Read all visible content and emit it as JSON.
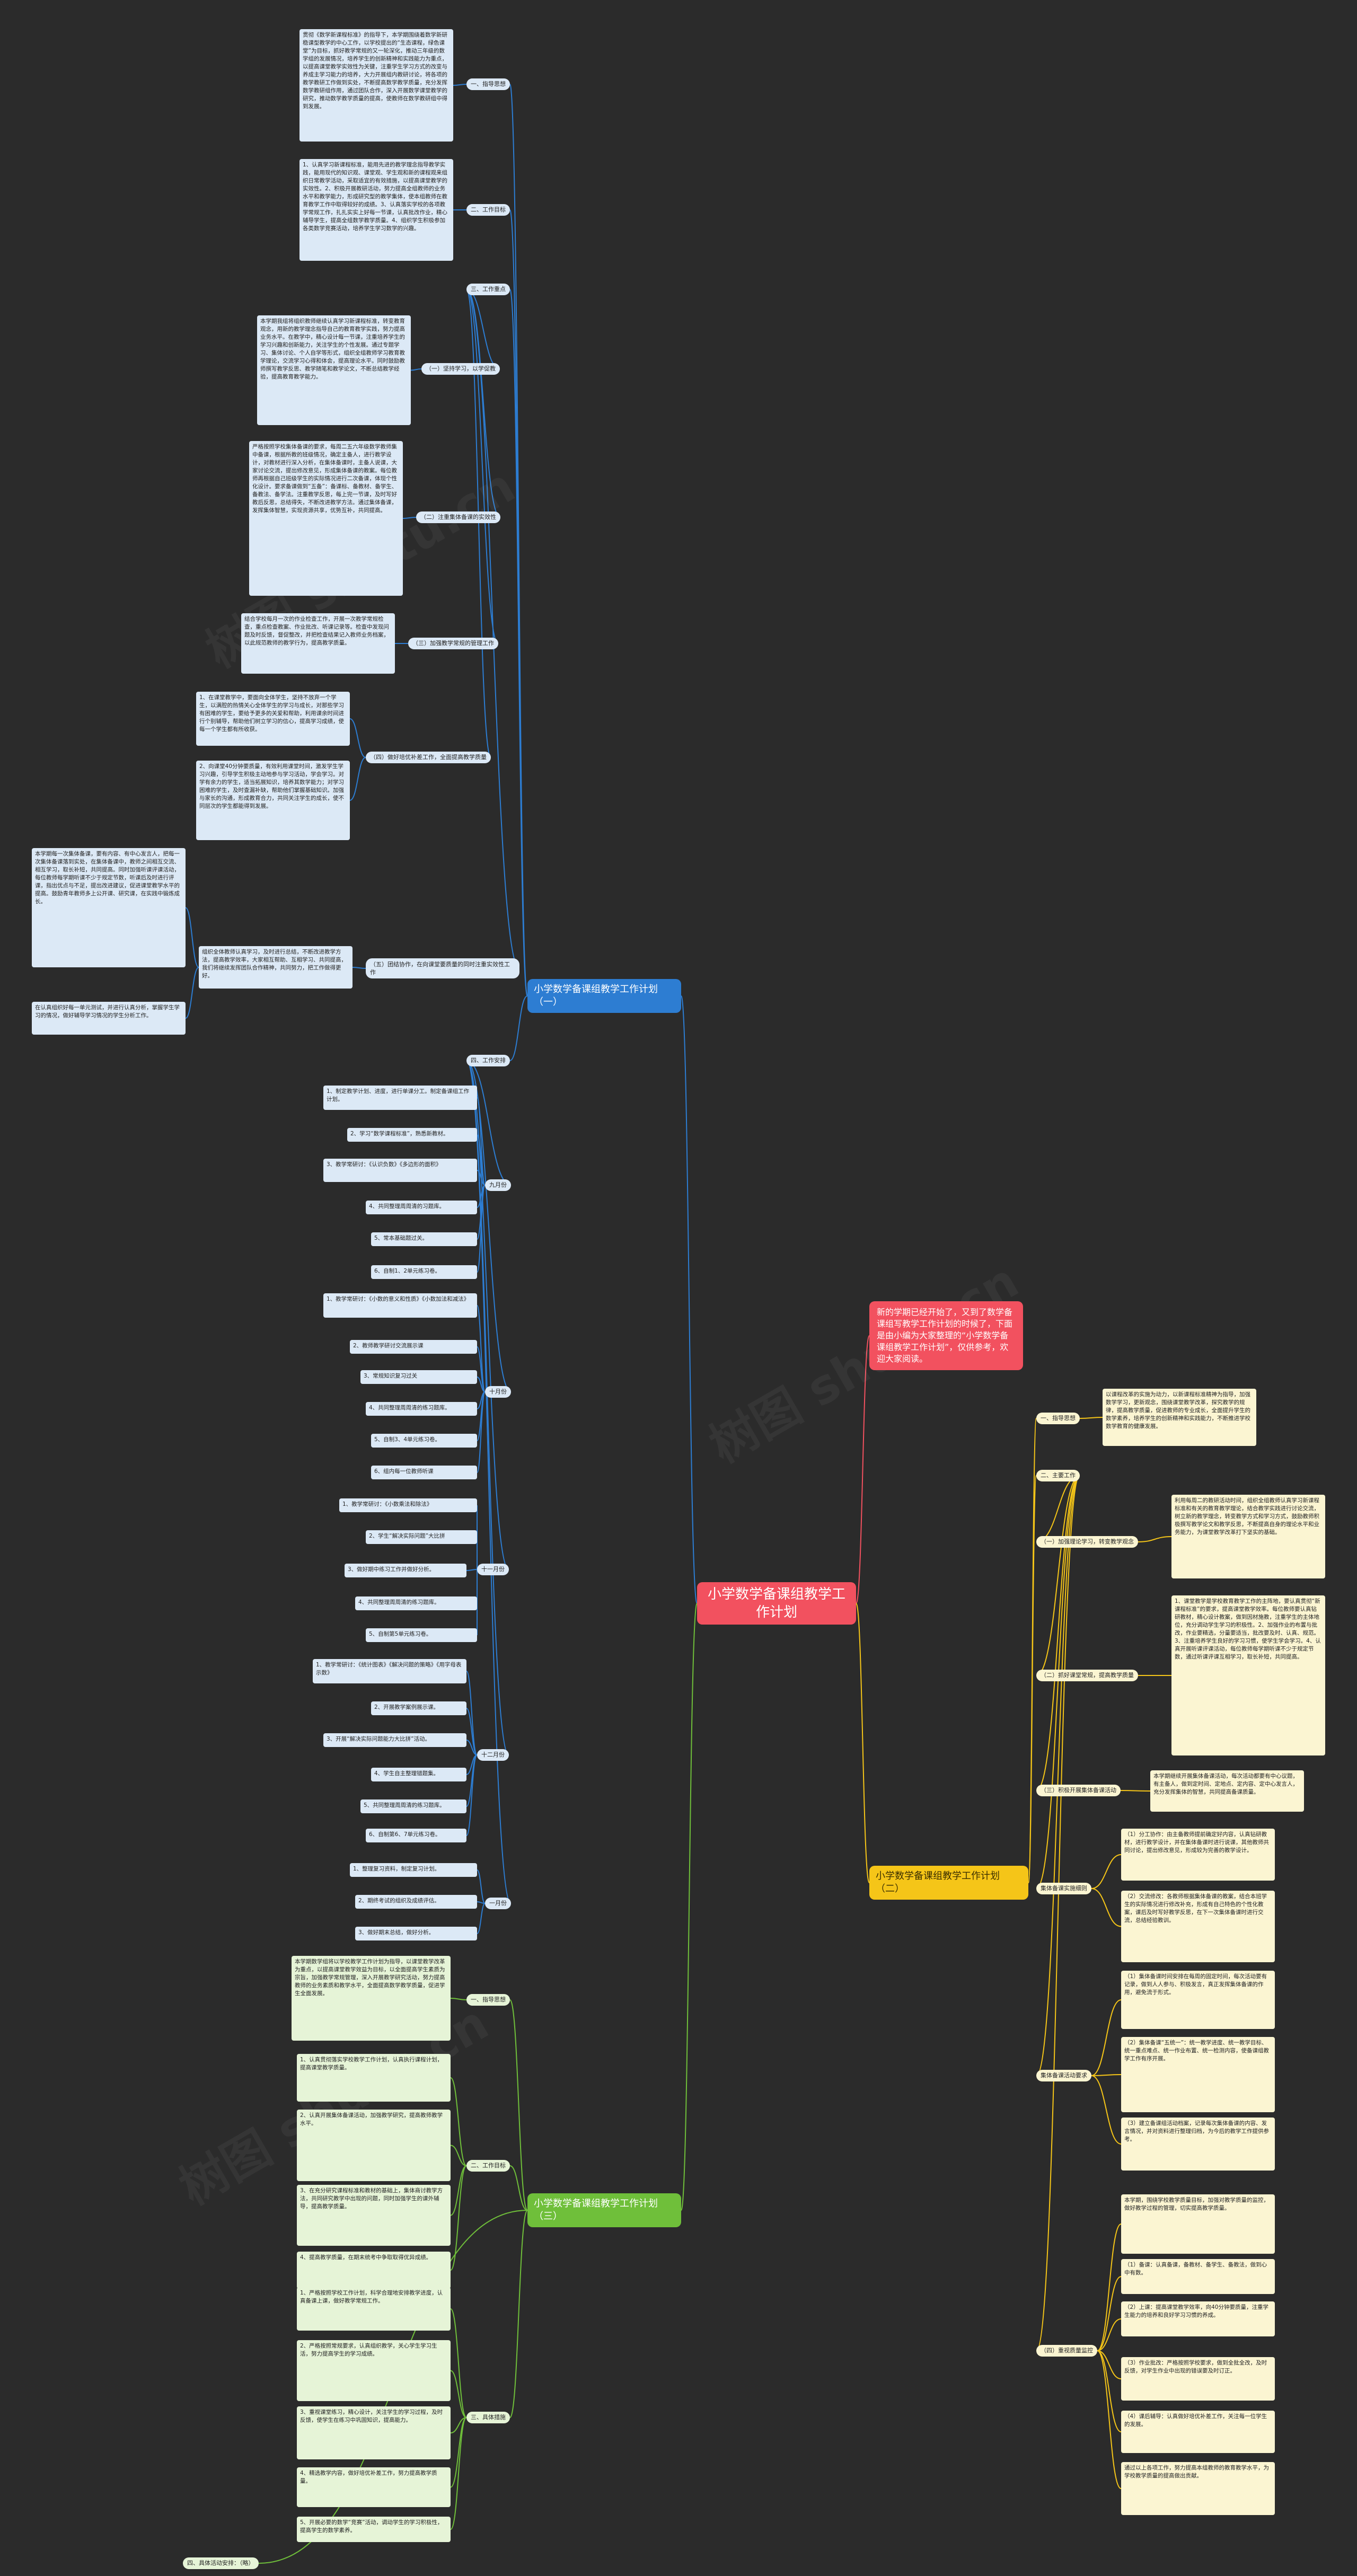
{
  "root": "小学数学备课组教学工作计划",
  "intro": "新的学期已经开始了，又到了数学备课组写教学工作计划的时候了，下面是由小编为大家整理的“小学数学备课组教学工作计划”，仅供参考，欢迎大家阅读。",
  "watermark": "树图 shutu.cn",
  "colors": {
    "background": "#2b2b2b",
    "root": "#f2515f",
    "blue": "#2d7dd2",
    "yellow": "#f5c518",
    "green": "#6fbf3a"
  },
  "plan1": {
    "title": "小学数学备课组教学工作计划（一）",
    "guiding_label": "一、指导思想",
    "guiding_text": "贯彻《数学新课程标准》的指导下，本学期围绕着数学新研稳课型教学的中心工作，以学校提出的“生态课程，绿色课堂”为目标，抓好教学常规的又一轮深化，推动三年级的数学组的发展情况，培养学生的创新精神和实践能力为重点，以提高课堂教学实效性为关键，注重学生学习方式的改变与养成主学习能力的培养，大力开展组内教研讨论，将各项的教学教研工作做到实处，不断提高数学教学质量，充分发挥数学教研组作用，通过团队合作，深入开展数学课堂教学的研究，推动数学教学质量的提高，使教师在数学教研组中得到发展。",
    "goal_label": "二、工作目标",
    "goal_text": "1、认真学习新课程标准，能用先进的教学理念指导教学实践，能用现代的知识观、课堂观、学生观和新的课程观来组织日常教学活动，采取适宜的有效措施，以提高课堂教学的实效性。2、积极开展教研活动，努力提高全组教师的业务水平和教学能力，形成研究型的教学集体，使本组教师在教育教学工作中取得较好的成绩。3、认真落实学校的各项教学常规工作，扎扎实实上好每一节课，认真批改作业，精心辅导学生，提高全组数学教学质量。4、组织学生积极参加各类数学竞赛活动，培养学生学习数学的兴趣。",
    "focus_label": "三、工作重点",
    "s1_label": "（一）坚持学习，以学促教",
    "s1_text": "本学期我组将组织教师继续认真学习新课程标准，转变教育观念，用新的教学理念指导自己的教育教学实践，努力提高业务水平。在教学中，精心设计每一节课，注重培养学生的学习兴趣和创新能力，关注学生的个性发展。通过专题学习、集体讨论、个人自学等形式，组织全组教师学习教育教学理论，交流学习心得和体会，提高理论水平。同时鼓励教师撰写教学反思、教学随笔和教学论文，不断总结教学经验，提高教育教学能力。",
    "s2_label": "（二）注重集体备课的实效性",
    "s2_text": "严格按照学校集体备课的要求，每周二五六年级数学教师集中备课，根据所教的班级情况，确定主备人，进行教学设计，对教材进行深入分析，在集体备课时，主备人说课，大家讨论交流，提出修改意见，形成集体备课的教案。每位教师再根据自己班级学生的实际情况进行二次备课，体现个性化设计。要求备课做到“五备”：备课标、备教材、备学生、备教法、备学法。注重教学反思，每上完一节课，及时写好教后反思，总结得失，不断改进教学方法。通过集体备课，发挥集体智慧，实现资源共享，优势互补，共同提高。",
    "s3_label": "（三）加强教学常规的管理工作",
    "s3_text": "结合学校每月一次的作业检查工作，开展一次教学常规检查，重点检查教案、作业批改、听课记录等。检查中发现问题及时反馈，督促整改，并把检查结果记入教师业务档案，以此规范教师的教学行为，提高教学质量。",
    "s4_label": "（四）做好培优补差工作，全面提高教学质量",
    "s4_text1": "1、在课堂教学中，要面向全体学生，坚持不放弃一个学生，以满腔的热情关心全体学生的学习与成长，对那些学习有困难的学生，要给予更多的关爱和帮助，利用课余时间进行个别辅导，帮助他们树立学习的信心，提高学习成绩，使每一个学生都有所收获。",
    "s4_text2": "2、向课堂40分钟要质量，有效利用课堂时间，激发学生学习兴趣，引导学生积极主动地参与学习活动，学会学习。对学有余力的学生，适当拓展知识，培养其数学能力；对学习困难的学生，及时查漏补缺，帮助他们掌握基础知识。加强与家长的沟通，形成教育合力，共同关注学生的成长，使不同层次的学生都能得到发展。",
    "s5_label": "（五）团结协作，在向课堂要质量的同时注重实效性工作",
    "s5_text1": "本学期每一次集体备课，要有内容、有中心发言人，把每一次集体备课落到实处，在集体备课中，教师之间相互交流、相互学习，取长补短，共同提高。同时加强听课评课活动，每位教师每学期听课不少于规定节数，听课后及时进行评课，指出优点与不足，提出改进建议，促进课堂教学水平的提高。鼓励青年教师多上公开课、研究课，在实践中锻炼成长。",
    "s5_text2": "组织全体教师认真学习，及时进行总结，不断改进教学方法，提高教学效率，大家相互帮助、互相学习、共同提高，我们将继续发挥团队合作精神，共同努力，把工作做得更好。",
    "s5_text3": "在认真组织好每一单元测试，并进行认真分析，掌握学生学习的情况，做好辅导学习情况的学生分析工作。",
    "schedule_label": "四、工作安排",
    "months": [
      {
        "label": "九月份",
        "items": [
          "1、制定教学计划、进度，进行单课分工。制定备课组工作计划。",
          "2、学习“数学课程标准”，熟悉新教材。",
          "3、教学常研讨：《认识负数》《多边形的面积》",
          "4、共同整理周周清的习题库。",
          "5、常本基础题过关。",
          "6、自制1、2单元练习卷。"
        ]
      },
      {
        "label": "十月份",
        "items": [
          "1、教学常研讨：《小数的意义和性质》《小数加法和减法》",
          "2、教师教学研讨交流展示课",
          "3、常规知识复习过关",
          "4、共同整理周周清的练习题库。",
          "5、自制3、4单元练习卷。",
          "6、组内每一位教师听课"
        ]
      },
      {
        "label": "十一月份",
        "items": [
          "1、教学常研讨：《小数乘法和除法》",
          "2、学生“解决实际问题”大比拼",
          "3、做好期中练习工作并做好分析。",
          "4、共同整理周周清的练习题库。",
          "5、自制第5单元练习卷。"
        ]
      },
      {
        "label": "十二月份",
        "items": [
          "1、教学常研讨：《统计图表》《解决问题的策略》《用字母表示数》",
          "2、开展教学案例展示课。",
          "3、开展“解决实际问题能力大比拼”活动。",
          "4、学生自主整理错题集。",
          "5、共同整理周周清的练习题库。",
          "6、自制第6、7单元练习卷。"
        ]
      },
      {
        "label": "一月份",
        "items": [
          "1、整理复习资料，制定复习计划。",
          "2、期终考试的组织及成绩评估。",
          "3、做好期末总结，做好分析。"
        ]
      }
    ]
  },
  "plan2": {
    "title": "小学数学备课组教学工作计划（二）",
    "guiding_label": "一、指导思想",
    "guiding_text": "以课程改革的实施为动力，以新课程标准精神为指导，加强数学学习，更新观念，围绕课堂教学改革，探究教学的规律，提高教学质量，促进教师的专业成长，全面提升学生的数学素养，培养学生的创新精神和实践能力，不断推进学校数学教育的健康发展。",
    "goal_label": "二、主要工作",
    "s1_label": "（一）加强理论学习，转变教学观念",
    "s1_text": "利用每周二的教研活动时间，组织全组教师认真学习新课程标准和有关的教育教学理论，结合教学实践进行讨论交流，树立新的教学理念，转变教学方式和学习方式，鼓励教师积极撰写教学论文和教学反思，不断提高自身的理论水平和业务能力，为课堂教学改革打下坚实的基础。",
    "s2_label": "（二）抓好课堂常规，提高教学质量",
    "s2_text": "1、课堂教学是学校教育教学工作的主阵地，要认真贯彻“新课程标准”的要求，提高课堂教学效率。每位教师要认真钻研教材，精心设计教案，做到因材施教，注重学生的主体地位，充分调动学生学习的积极性。2、加强作业的布置与批改，作业要精选，分量要适当，批改要及时、认真、规范。3、注重培养学生良好的学习习惯，使学生学会学习。4、认真开展听课评课活动，每位教师每学期听课不少于规定节数，通过听课评课互相学习，取长补短，共同提高。",
    "s3_label": "（三）积极开展集体备课活动",
    "s3_text": "本学期继续开展集体备课活动，每次活动都要有中心议题，有主备人，做到定时间、定地点、定内容、定中心发言人，充分发挥集体的智慧，共同提高备课质量。",
    "s4_label": "集体备课实施细则",
    "s4_text1": "（1）分工协作：由主备教师提前确定好内容，认真钻研教材，进行教学设计，并在集体备课时进行说课，其他教师共同讨论，提出修改意见，形成较为完善的教学设计。",
    "s4_text2": "（2）交流修改：各教师根据集体备课的教案，结合本班学生的实际情况进行修改补充，形成有自己特色的个性化教案，课后及时写好教学反思，在下一次集体备课时进行交流，总结经验教训。",
    "s5_label": "集体备课活动要求",
    "s5_text1": "（1）集体备课时间安排在每周的固定时间，每次活动要有记录，做到人人参与、积极发言，真正发挥集体备课的作用，避免流于形式。",
    "s5_text2": "（2）集体备课“五统一”：统一教学进度、统一教学目标、统一重点难点、统一作业布置、统一检测内容，使备课组教学工作有序开展。",
    "s5_text3": "（3）建立备课组活动档案，记录每次集体备课的内容、发言情况，并对资料进行整理归档，为今后的教学工作提供参考。",
    "s6_label": "（四）重视质量监控",
    "s6_text1": "本学期，围绕学校教学质量目标，加强对教学质量的监控，做好教学过程的管理，切实提高教学质量。",
    "s6_text2": "（1）备课：认真备课，备教材、备学生、备教法，做到心中有数。",
    "s6_text3": "（2）上课：提高课堂教学效率，向40分钟要质量，注重学生能力的培养和良好学习习惯的养成。",
    "s6_text4": "（3）作业批改：严格按照学校要求，做到全批全改，及时反馈，对学生作业中出现的错误要及时订正。",
    "s6_text5": "（4）课后辅导：认真做好培优补差工作，关注每一位学生的发展。",
    "s6_text6": "通过以上各项工作，努力提高本组教师的教育教学水平，为学校教学质量的提高做出贡献。"
  },
  "plan3": {
    "title": "小学数学备课组教学工作计划（三）",
    "guiding_label": "一、指导思想",
    "guiding_text": "本学期数学组将以学校教学工作计划为指导，以课堂教学改革为重点，以提高课堂教学效益为目标，以全面提高学生素质为宗旨，加强教学常规管理，深入开展教学研究活动，努力提高教师的业务素质和教学水平，全面提高数学教学质量，促进学生全面发展。",
    "goal_label": "二、工作目标",
    "goal_items": [
      "1、认真贯彻落实学校教学工作计划，认真执行课程计划，提高课堂教学质量。",
      "2、认真开展集体备课活动，加强教学研究，提高教师教学水平。",
      "3、在充分研究课程标准和教材的基础上，集体商讨教学方法，共同研究教学中出现的问题，同时加强学生的课外辅导，提高教学质量。",
      "4、提高教学质量，在期末统考中争取取得优异成绩。"
    ],
    "steps_label": "三、具体措施",
    "steps_items": [
      "1、严格按照学校工作计划，科学合理地安排教学进度，认真备课上课，做好教学常规工作。",
      "2、严格按照常规要求，认真组织教学，关心学生学习生活，努力提高学生的学习成绩。",
      "3、重视课堂练习，精心设计，关注学生的学习过程，及时反馈，使学生在练习中巩固知识，提高能力。",
      "4、精选教学内容，做好培优补差工作，努力提高教学质量。",
      "5、开展必要的数学“竞赛”活动，调动学生的学习积极性，提高学生的数学素养。"
    ],
    "schedule_label": "四、具体活动安排：（略）"
  }
}
